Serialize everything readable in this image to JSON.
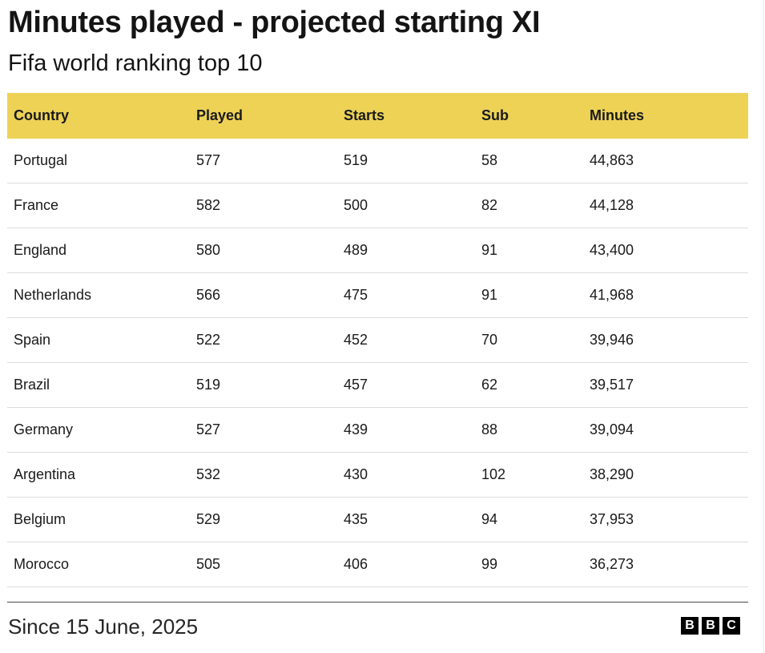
{
  "title": "Minutes played - projected starting XI",
  "subtitle": "Fifa world ranking top 10",
  "source": "Since 15 June, 2025",
  "logo_letters": [
    "B",
    "B",
    "C"
  ],
  "colors": {
    "header_background": "#edd256",
    "row_divider": "#dcdcdc",
    "text": "#1a1a1a"
  },
  "chart_data": {
    "type": "table",
    "title": "Minutes played - projected starting XI",
    "subtitle": "Fifa world ranking top 10",
    "columns": [
      "Country",
      "Played",
      "Starts",
      "Sub",
      "Minutes"
    ],
    "rows": [
      [
        "Portugal",
        "577",
        "519",
        "58",
        "44,863"
      ],
      [
        "France",
        "582",
        "500",
        "82",
        "44,128"
      ],
      [
        "England",
        "580",
        "489",
        "91",
        "43,400"
      ],
      [
        "Netherlands",
        "566",
        "475",
        "91",
        "41,968"
      ],
      [
        "Spain",
        "522",
        "452",
        "70",
        "39,946"
      ],
      [
        "Brazil",
        "519",
        "457",
        "62",
        "39,517"
      ],
      [
        "Germany",
        "527",
        "439",
        "88",
        "39,094"
      ],
      [
        "Argentina",
        "532",
        "430",
        "102",
        "38,290"
      ],
      [
        "Belgium",
        "529",
        "435",
        "94",
        "37,953"
      ],
      [
        "Morocco",
        "505",
        "406",
        "99",
        "36,273"
      ]
    ]
  }
}
